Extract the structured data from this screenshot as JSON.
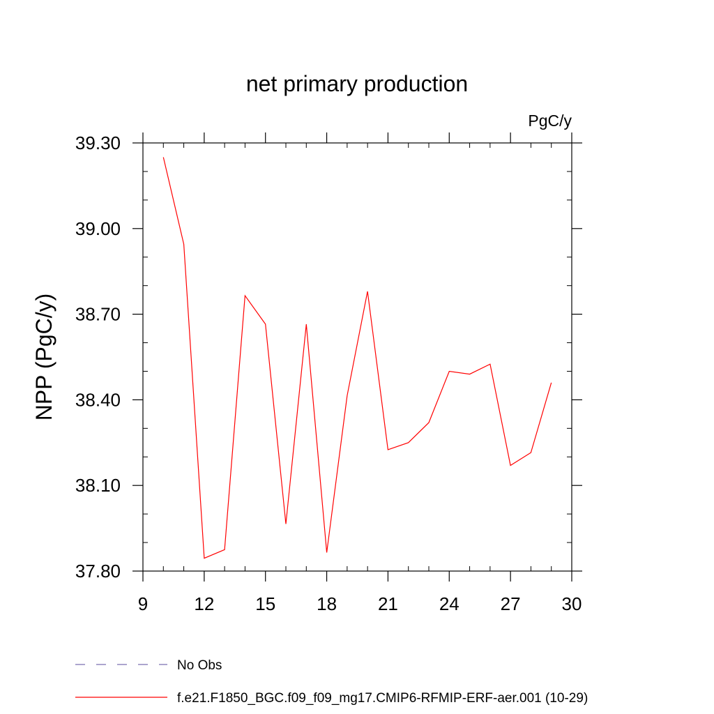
{
  "chart_data": {
    "type": "line",
    "title": "net primary production",
    "units_label": "PgC/y",
    "xlabel": "",
    "ylabel": "NPP  (PgC/y)",
    "xlim": [
      9,
      30
    ],
    "ylim": [
      37.8,
      39.3
    ],
    "x_ticks": [
      9,
      12,
      15,
      18,
      21,
      24,
      27,
      30
    ],
    "x_tick_labels": [
      "9",
      "12",
      "15",
      "18",
      "21",
      "24",
      "27",
      "30"
    ],
    "y_ticks": [
      37.8,
      38.1,
      38.4,
      38.7,
      39.0,
      39.3
    ],
    "y_tick_labels": [
      "37.80",
      "38.10",
      "38.40",
      "38.70",
      "39.00",
      "39.30"
    ],
    "x_minor_step": 1,
    "y_minor_step": 0.1,
    "series": [
      {
        "name": "f.e21.F1850_BGC.f09_f09_mg17.CMIP6-RFMIP-ERF-aer.001 (10-29)",
        "color": "#ff0000",
        "style": "solid",
        "x": [
          10,
          11,
          12,
          13,
          14,
          15,
          16,
          17,
          18,
          19,
          20,
          21,
          22,
          23,
          24,
          25,
          26,
          27,
          28,
          29
        ],
        "values": [
          39.25,
          38.945,
          37.845,
          37.875,
          38.765,
          38.665,
          37.965,
          38.665,
          37.865,
          38.415,
          38.78,
          38.225,
          38.25,
          38.32,
          38.5,
          38.49,
          38.525,
          38.17,
          38.215,
          38.46
        ]
      }
    ],
    "legend": [
      {
        "label": "No Obs",
        "color": "#7a6fb0",
        "style": "dashed"
      },
      {
        "label": "f.e21.F1850_BGC.f09_f09_mg17.CMIP6-RFMIP-ERF-aer.001 (10-29)",
        "color": "#ff0000",
        "style": "solid"
      }
    ]
  }
}
